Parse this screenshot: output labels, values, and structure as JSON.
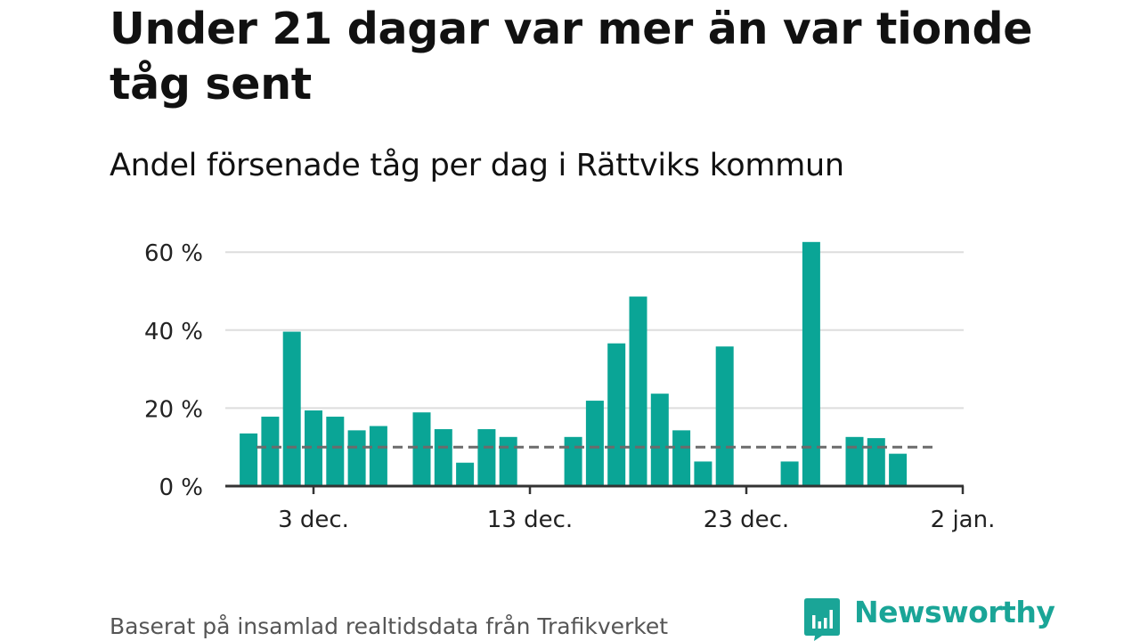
{
  "title": "Under 21 dagar var mer än var tionde tåg sent",
  "subtitle": "Andel försenade tåg per dag i Rättviks kommun",
  "source": "Baserat på insamlad realtidsdata från Trafikverket",
  "logo": {
    "text": "Newsworthy",
    "icon": "newsworthy-chart-bubble-icon",
    "color": "#1aa597"
  },
  "colors": {
    "bar": "#0aa596",
    "reference_line": "#6b6b6b",
    "grid": "#dddddd",
    "axis": "#333333"
  },
  "chart_data": {
    "type": "bar",
    "x_axis_type": "date",
    "x": [
      "2023-11-30",
      "2023-12-01",
      "2023-12-02",
      "2023-12-03",
      "2023-12-04",
      "2023-12-05",
      "2023-12-06",
      "2023-12-07",
      "2023-12-08",
      "2023-12-09",
      "2023-12-10",
      "2023-12-11",
      "2023-12-12",
      "2023-12-13",
      "2023-12-14",
      "2023-12-15",
      "2023-12-16",
      "2023-12-17",
      "2023-12-18",
      "2023-12-19",
      "2023-12-20",
      "2023-12-21",
      "2023-12-22",
      "2023-12-23",
      "2023-12-24",
      "2023-12-25",
      "2023-12-26",
      "2023-12-27",
      "2023-12-28",
      "2023-12-29",
      "2023-12-30",
      "2023-12-31"
    ],
    "values": [
      13.5,
      17.8,
      39.6,
      19.4,
      17.8,
      14.3,
      15.4,
      0,
      18.9,
      14.6,
      6,
      14.6,
      12.6,
      0,
      0,
      12.6,
      21.9,
      36.6,
      48.6,
      23.7,
      14.3,
      6.3,
      35.8,
      0,
      0,
      6.3,
      62.6,
      0,
      12.6,
      12.3,
      8.3,
      null
    ],
    "x_ticks": [
      {
        "x": "2023-12-03",
        "label": "3 dec."
      },
      {
        "x": "2023-12-13",
        "label": "13 dec."
      },
      {
        "x": "2023-12-23",
        "label": "23 dec."
      },
      {
        "x": "2024-01-02",
        "label": "2 jan."
      }
    ],
    "y_ticks": [
      {
        "value": 0,
        "label": "0 %"
      },
      {
        "value": 20,
        "label": "20 %"
      },
      {
        "value": 40,
        "label": "40 %"
      },
      {
        "value": 60,
        "label": "60 %"
      }
    ],
    "ylim": [
      0,
      65
    ],
    "y_unit": "%",
    "reference_line": {
      "value": 10,
      "style": "dashed"
    },
    "grid": true,
    "legend": false,
    "xlabel": "",
    "ylabel": ""
  }
}
